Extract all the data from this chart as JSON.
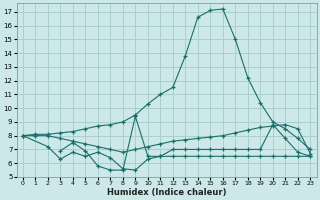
{
  "xlabel": "Humidex (Indice chaleur)",
  "bg_color": "#cce8e8",
  "grid_color": "#aacfcf",
  "line_color": "#1a6e6a",
  "xlim": [
    -0.5,
    23.5
  ],
  "ylim": [
    5.0,
    17.6
  ],
  "yticks": [
    5,
    6,
    7,
    8,
    9,
    10,
    11,
    12,
    13,
    14,
    15,
    16,
    17
  ],
  "xticks": [
    0,
    1,
    2,
    3,
    4,
    5,
    6,
    7,
    8,
    9,
    10,
    11,
    12,
    13,
    14,
    15,
    16,
    17,
    18,
    19,
    20,
    21,
    22,
    23
  ],
  "line1_x": [
    0,
    1,
    2,
    3,
    4,
    5,
    6,
    7,
    8,
    9,
    10,
    11,
    12,
    13,
    14,
    15,
    16,
    17,
    18,
    19,
    20,
    21,
    22,
    23
  ],
  "line1_y": [
    8.0,
    8.1,
    8.1,
    8.2,
    8.3,
    8.5,
    8.7,
    8.8,
    9.0,
    9.5,
    10.3,
    11.0,
    11.5,
    13.8,
    16.6,
    17.1,
    17.2,
    15.0,
    12.2,
    10.4,
    9.0,
    8.5,
    7.8,
    7.0
  ],
  "line2_x": [
    0,
    1,
    2,
    3,
    4,
    5,
    6,
    7,
    8,
    9,
    10,
    11,
    12,
    13,
    14,
    15,
    16,
    17,
    18,
    19,
    20,
    21,
    22,
    23
  ],
  "line2_y": [
    8.0,
    8.0,
    8.0,
    7.8,
    7.6,
    7.4,
    7.2,
    7.0,
    6.8,
    7.0,
    7.2,
    7.4,
    7.6,
    7.7,
    7.8,
    7.9,
    8.0,
    8.2,
    8.4,
    8.6,
    8.7,
    8.8,
    8.5,
    6.7
  ],
  "line3_x": [
    0,
    2,
    3,
    4,
    5,
    6,
    7,
    8,
    9,
    10,
    11,
    12,
    13,
    14,
    15,
    16,
    17,
    18,
    19,
    20,
    21,
    22,
    23
  ],
  "line3_y": [
    8.0,
    7.2,
    6.3,
    6.8,
    6.5,
    6.8,
    6.4,
    5.6,
    5.5,
    6.3,
    6.5,
    6.5,
    6.5,
    6.5,
    6.5,
    6.5,
    6.5,
    6.5,
    6.5,
    6.5,
    6.5,
    6.5,
    6.5
  ],
  "line4_x": [
    3,
    4,
    5,
    6,
    7,
    8,
    9,
    10,
    11,
    12,
    13,
    14,
    15,
    16,
    17,
    18,
    19,
    20,
    21,
    22,
    23
  ],
  "line4_y": [
    6.9,
    7.5,
    6.9,
    5.8,
    5.5,
    5.5,
    9.4,
    6.5,
    6.5,
    7.0,
    7.0,
    7.0,
    7.0,
    7.0,
    7.0,
    7.0,
    7.0,
    8.8,
    7.8,
    6.8,
    6.5
  ]
}
